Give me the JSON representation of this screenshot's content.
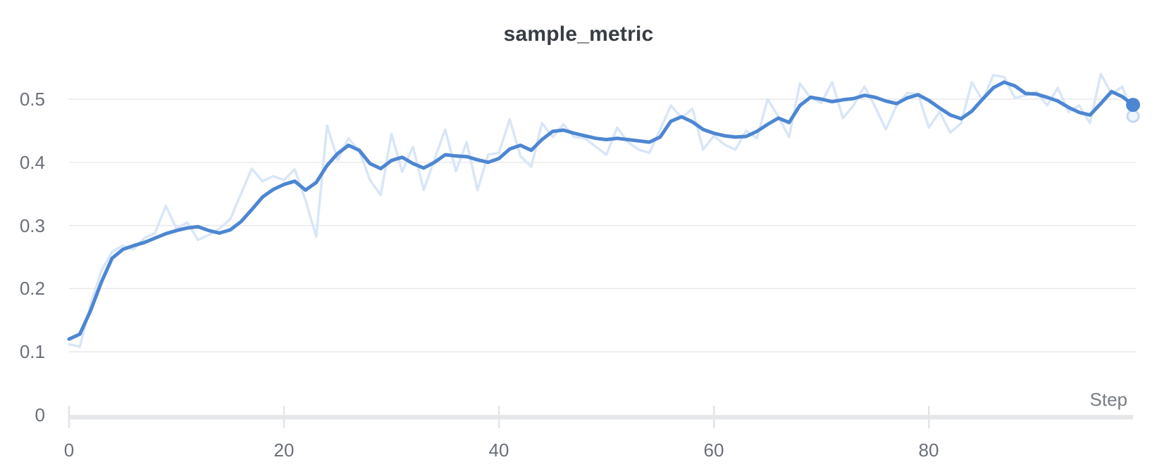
{
  "title": "sample_metric",
  "x_axis": {
    "label": "Step",
    "tick_labels": [
      "0",
      "20",
      "40",
      "60",
      "80"
    ]
  },
  "y_axis": {
    "tick_labels": [
      "0",
      "0.1",
      "0.2",
      "0.3",
      "0.4",
      "0.5"
    ]
  },
  "colors": {
    "line": "#4d86d2",
    "raw_line": "#d9e6f7",
    "end_dot": "#4d86d2",
    "raw_end_ring": "#c6d9f3",
    "raw_end_fill": "#f0f6fd",
    "grid": "#e8e9eb",
    "axis_bar": "#e6e7e9",
    "tick_mark": "#e3e4e7",
    "tick_text": "#6b7078",
    "title_text": "#383d44"
  },
  "chart_data": {
    "type": "line",
    "title": "sample_metric",
    "xlabel": "Step",
    "ylabel": "",
    "xlim": [
      0,
      99
    ],
    "ylim": [
      0,
      0.55
    ],
    "x_ticks": [
      0,
      20,
      40,
      60,
      80
    ],
    "y_ticks": [
      0,
      0.1,
      0.2,
      0.3,
      0.4,
      0.5
    ],
    "grid": "horizontal-only",
    "legend_position": "none",
    "x_is_step_index": true,
    "series": [
      {
        "name": "sample_metric (raw)",
        "role": "raw",
        "values": [
          0.112,
          0.108,
          0.175,
          0.228,
          0.258,
          0.268,
          0.262,
          0.28,
          0.288,
          0.331,
          0.295,
          0.305,
          0.277,
          0.285,
          0.295,
          0.31,
          0.35,
          0.39,
          0.37,
          0.378,
          0.372,
          0.389,
          0.34,
          0.282,
          0.458,
          0.404,
          0.438,
          0.418,
          0.372,
          0.348,
          0.445,
          0.385,
          0.425,
          0.356,
          0.405,
          0.452,
          0.386,
          0.432,
          0.356,
          0.412,
          0.415,
          0.468,
          0.41,
          0.393,
          0.462,
          0.44,
          0.46,
          0.44,
          0.438,
          0.425,
          0.412,
          0.455,
          0.432,
          0.42,
          0.415,
          0.452,
          0.49,
          0.47,
          0.485,
          0.42,
          0.442,
          0.428,
          0.42,
          0.45,
          0.438,
          0.5,
          0.472,
          0.44,
          0.525,
          0.502,
          0.494,
          0.527,
          0.47,
          0.49,
          0.52,
          0.488,
          0.452,
          0.49,
          0.51,
          0.508,
          0.455,
          0.48,
          0.447,
          0.462,
          0.527,
          0.498,
          0.538,
          0.535,
          0.502,
          0.506,
          0.512,
          0.49,
          0.518,
          0.48,
          0.49,
          0.462,
          0.54,
          0.508,
          0.52,
          0.473
        ]
      },
      {
        "name": "sample_metric (smoothed)",
        "role": "smoothed",
        "values": [
          0.12,
          0.128,
          0.165,
          0.21,
          0.248,
          0.262,
          0.268,
          0.273,
          0.28,
          0.287,
          0.292,
          0.296,
          0.298,
          0.292,
          0.288,
          0.293,
          0.306,
          0.325,
          0.345,
          0.357,
          0.365,
          0.37,
          0.356,
          0.368,
          0.395,
          0.414,
          0.427,
          0.419,
          0.398,
          0.39,
          0.403,
          0.408,
          0.398,
          0.391,
          0.4,
          0.412,
          0.41,
          0.409,
          0.404,
          0.4,
          0.406,
          0.421,
          0.427,
          0.419,
          0.436,
          0.449,
          0.451,
          0.446,
          0.442,
          0.438,
          0.436,
          0.438,
          0.436,
          0.434,
          0.432,
          0.44,
          0.465,
          0.472,
          0.464,
          0.452,
          0.446,
          0.442,
          0.44,
          0.441,
          0.449,
          0.46,
          0.47,
          0.463,
          0.49,
          0.503,
          0.5,
          0.496,
          0.499,
          0.501,
          0.506,
          0.503,
          0.497,
          0.493,
          0.502,
          0.507,
          0.498,
          0.486,
          0.475,
          0.469,
          0.481,
          0.5,
          0.518,
          0.527,
          0.521,
          0.509,
          0.508,
          0.503,
          0.497,
          0.487,
          0.479,
          0.475,
          0.493,
          0.512,
          0.504,
          0.491
        ]
      }
    ],
    "last_point_markers": {
      "smoothed_dot_value": 0.491,
      "raw_ring_value": 0.473
    }
  }
}
